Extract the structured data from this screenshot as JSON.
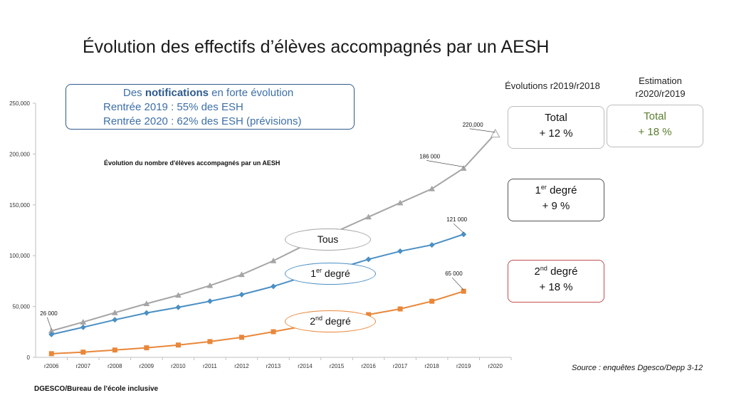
{
  "title": "Évolution des effectifs d’élèves accompagnés par un AESH",
  "notifications": {
    "prefix": "Des ",
    "bold": "notifications",
    "suffix": " en forte évolution",
    "line2": "Rentrée 2019 : 55% des ESH",
    "line3": "Rentrée 2020 : 62% des ESH (prévisions)"
  },
  "headers": {
    "evolutions": "Évolutions r2019/r2018",
    "estimation_line1": "Estimation",
    "estimation_line2": "r2020/r2019"
  },
  "boxes": {
    "total_label": "Total",
    "total_value": "+ 12 %",
    "estimation_label": "Total",
    "estimation_value": "+ 18 %",
    "premier_base": "1",
    "premier_sup": "er",
    "premier_rest": " degré",
    "premier_value": "+ 9 %",
    "second_base": "2",
    "second_sup": "nd",
    "second_rest": " degré",
    "second_value": "+ 18 %"
  },
  "ovals": {
    "tous": "Tous",
    "premier_base": "1",
    "premier_sup": "er",
    "premier_rest": " degré",
    "second_base": "2",
    "second_sup": "nd",
    "second_rest": " degré"
  },
  "source": "Source : enquêtes Dgesco/Depp 3-12",
  "footer": "DGESCO/Bureau de l'école inclusive",
  "colors": {
    "tous": "#a5a5a5",
    "premier": "#4a8fc4",
    "second": "#e8873a",
    "axis": "#bfbfbf"
  },
  "chart_data": {
    "type": "line",
    "title": "Évolution du nombre d'élèves accompagnés par un AESH",
    "categories": [
      "r2006",
      "r2007",
      "r2008",
      "r2009",
      "r2010",
      "r2011",
      "r2012",
      "r2013",
      "r2014",
      "r2015",
      "r2016",
      "r2017",
      "r2018",
      "r2019",
      "r2020"
    ],
    "ylim": [
      0,
      250000
    ],
    "yticks": [
      0,
      50000,
      100000,
      150000,
      200000,
      250000
    ],
    "ytick_labels": [
      "0",
      "50,000",
      "100,000",
      "150,000",
      "200,000",
      "250,000"
    ],
    "grid": false,
    "series": [
      {
        "key": "tous",
        "marker": "triangle",
        "values": [
          26000,
          34700,
          43900,
          52800,
          61100,
          70600,
          81400,
          95000,
          110500,
          124000,
          138100,
          152000,
          165800,
          186000,
          220000
        ]
      },
      {
        "key": "premier",
        "marker": "diamond",
        "values": [
          22500,
          29600,
          36900,
          43700,
          49200,
          55200,
          61700,
          69800,
          79600,
          87000,
          96400,
          104400,
          110600,
          121000,
          null
        ]
      },
      {
        "key": "second",
        "marker": "square",
        "values": [
          3600,
          5100,
          7200,
          9400,
          12100,
          15500,
          19700,
          25200,
          30900,
          36000,
          42000,
          47600,
          55200,
          65000,
          null
        ]
      }
    ],
    "annotations": [
      {
        "text": "26 000",
        "series": "tous",
        "index": 0
      },
      {
        "text": "186 000",
        "series": "tous",
        "index": 13
      },
      {
        "text": "220,000",
        "series": "tous",
        "index": 14
      },
      {
        "text": "121 000",
        "series": "premier",
        "index": 13
      },
      {
        "text": "65 000",
        "series": "second",
        "index": 13
      }
    ]
  }
}
